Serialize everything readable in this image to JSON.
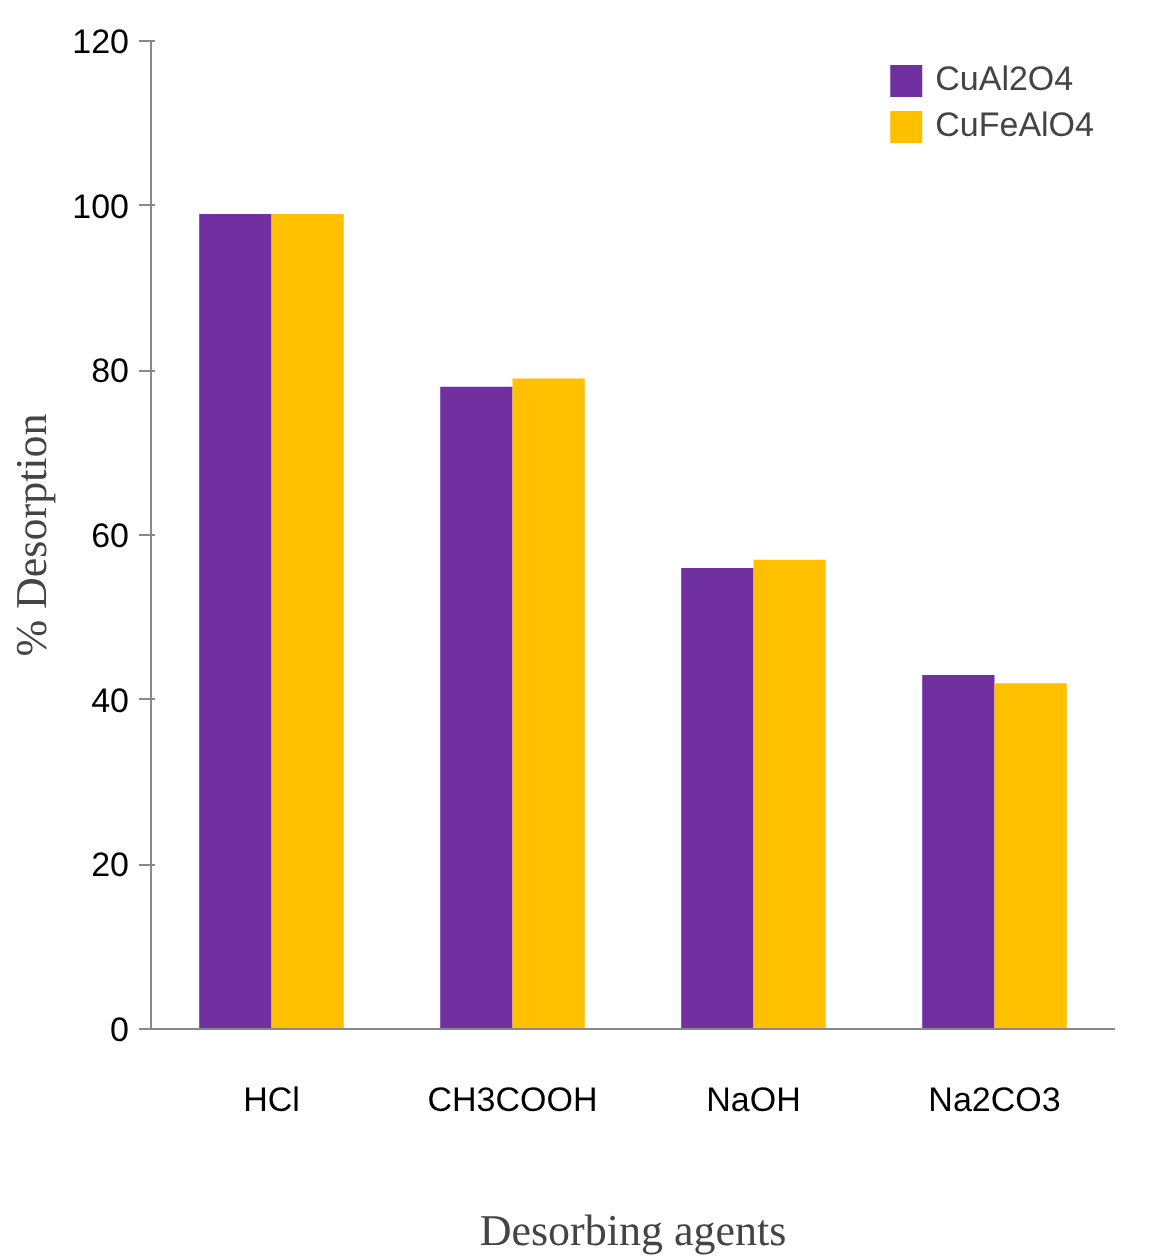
{
  "chart_data": {
    "type": "bar",
    "xlabel": "Desorbing agents",
    "ylabel": "% Desorption",
    "categories": [
      "HCl",
      "CH3COOH",
      "NaOH",
      "Na2CO3"
    ],
    "series": [
      {
        "name": "CuAl2O4",
        "color": "#7030a0",
        "values": [
          99,
          78,
          56,
          43
        ]
      },
      {
        "name": "CuFeAlO4",
        "color": "#ffc000",
        "values": [
          99,
          79,
          57,
          42
        ]
      }
    ],
    "ylim": [
      0,
      120
    ],
    "yticks": [
      0,
      20,
      40,
      60,
      80,
      100,
      120
    ],
    "grid": false,
    "legend": "top right"
  }
}
